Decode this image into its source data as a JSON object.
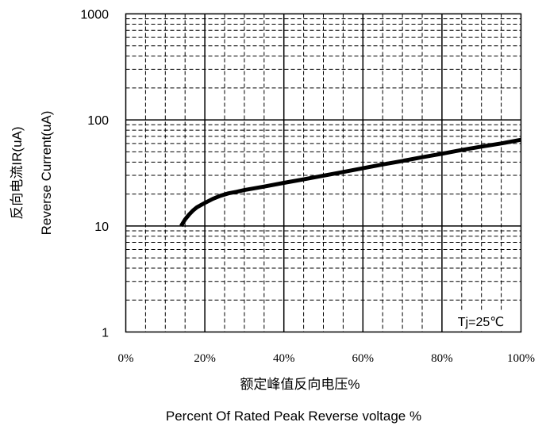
{
  "chart_data": {
    "type": "line",
    "y_scale": "log",
    "ylim": [
      1,
      1000
    ],
    "xlim": [
      0,
      100
    ],
    "grid": true,
    "x_tick_labels": [
      "0%",
      "20%",
      "40%",
      "60%",
      "80%",
      "100%"
    ],
    "y_tick_labels": [
      "1",
      "10",
      "100",
      "1000"
    ],
    "xlabel_cn": "额定峰值反向电压%",
    "xlabel_en": "Percent Of Rated Peak Reverse voltage %",
    "ylabel_cn": "反向电流IR(uA)",
    "ylabel_en": "Reverse Current(uA)",
    "annotation": "Tj=25℃",
    "series": [
      {
        "x": [
          14,
          15,
          16,
          17,
          18,
          20,
          22,
          24,
          26,
          28,
          30,
          35,
          40,
          45,
          50,
          55,
          60,
          65,
          70,
          75,
          80,
          85,
          90,
          95,
          100
        ],
        "y": [
          10.0,
          11.5,
          12.8,
          14.0,
          15.0,
          16.5,
          18.0,
          19.3,
          20.3,
          21.0,
          21.8,
          23.5,
          25.5,
          27.5,
          29.8,
          32.3,
          35.0,
          38.0,
          41.0,
          44.5,
          48.0,
          52.0,
          56.0,
          60.0,
          65.0
        ]
      }
    ],
    "colors": {
      "curve": "#000000",
      "grid": "#000000",
      "background": "#ffffff"
    }
  }
}
